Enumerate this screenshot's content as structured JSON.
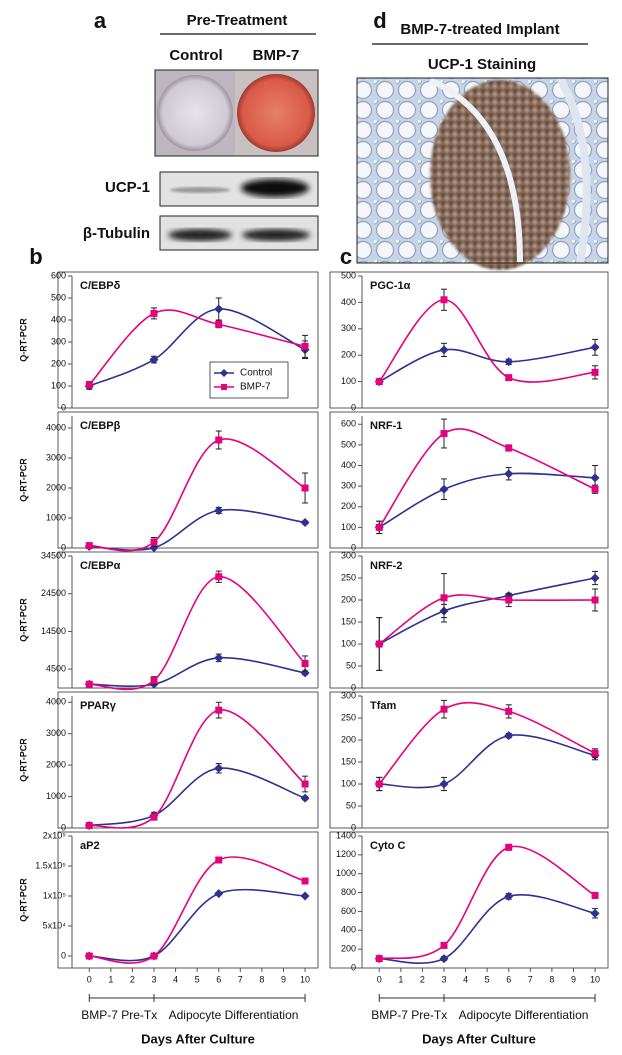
{
  "panels": {
    "a": {
      "label": "a",
      "header": "Pre-Treatment",
      "columns": [
        "Control",
        "BMP-7"
      ],
      "blots": [
        "UCP-1",
        "β-Tubulin"
      ]
    },
    "d": {
      "label": "d",
      "title": "BMP-7-treated Implant",
      "subtitle": "UCP-1  Staining"
    },
    "b": {
      "label": "b"
    },
    "c": {
      "label": "c"
    }
  },
  "chart_data": [
    {
      "type": "line",
      "title": "C/EBPδ",
      "ylabel": "Q-RT-PCR",
      "x": [
        0,
        3,
        6,
        10
      ],
      "xlim": [
        -0.8,
        10.6
      ],
      "ylim": [
        0,
        600
      ],
      "yticks": [
        0,
        100,
        200,
        300,
        400,
        500,
        600
      ],
      "legend": "lower-right",
      "series": [
        {
          "name": "Control",
          "color": "#2e3192",
          "marker": "diamond",
          "values": [
            100,
            220,
            450,
            265
          ],
          "errors": [
            15,
            15,
            50,
            40
          ]
        },
        {
          "name": "BMP-7",
          "color": "#e6007e",
          "marker": "square",
          "values": [
            105,
            430,
            380,
            280
          ],
          "errors": [
            15,
            25,
            15,
            50
          ]
        }
      ]
    },
    {
      "type": "line",
      "title": "C/EBPβ",
      "ylabel": "Q-RT-PCR",
      "x": [
        0,
        3,
        6,
        10
      ],
      "xlim": [
        -0.8,
        10.6
      ],
      "ylim": [
        0,
        4400
      ],
      "yticks": [
        0,
        1000,
        2000,
        3000,
        4000
      ],
      "series": [
        {
          "color": "#2e3192",
          "marker": "diamond",
          "values": [
            50,
            10,
            1250,
            850
          ],
          "errors": [
            20,
            20,
            100,
            50
          ]
        },
        {
          "color": "#e6007e",
          "marker": "square",
          "values": [
            80,
            200,
            3600,
            2000
          ],
          "errors": [
            20,
            150,
            300,
            500
          ]
        }
      ]
    },
    {
      "type": "line",
      "title": "C/EBPα",
      "ylabel": "Q-RT-PCR",
      "x": [
        0,
        3,
        6,
        10
      ],
      "xlim": [
        -0.8,
        10.6
      ],
      "ylim": [
        -500,
        34500
      ],
      "yticks": [
        4500,
        14500,
        24500,
        34500
      ],
      "series": [
        {
          "color": "#2e3192",
          "marker": "diamond",
          "values": [
            500,
            500,
            7500,
            3500
          ],
          "errors": [
            200,
            200,
            1000,
            500
          ]
        },
        {
          "color": "#e6007e",
          "marker": "square",
          "values": [
            500,
            1500,
            29000,
            6000
          ],
          "errors": [
            200,
            1000,
            1500,
            2000
          ]
        }
      ]
    },
    {
      "type": "line",
      "title": "PPARγ",
      "ylabel": "Q-RT-PCR",
      "x": [
        0,
        3,
        6,
        10
      ],
      "xlim": [
        -0.8,
        10.6
      ],
      "ylim": [
        0,
        4200
      ],
      "yticks": [
        0,
        1000,
        2000,
        3000,
        4000
      ],
      "series": [
        {
          "color": "#2e3192",
          "marker": "diamond",
          "values": [
            80,
            400,
            1900,
            950
          ],
          "errors": [
            20,
            100,
            150,
            50
          ]
        },
        {
          "color": "#e6007e",
          "marker": "square",
          "values": [
            80,
            350,
            3750,
            1400
          ],
          "errors": [
            20,
            100,
            250,
            250
          ]
        }
      ]
    },
    {
      "type": "line",
      "title": "aP2",
      "ylabel": "Q-RT-PCR",
      "x": [
        0,
        3,
        6,
        10
      ],
      "xlim": [
        -0.8,
        10.6
      ],
      "ylim": [
        -20000,
        200000
      ],
      "yticks": [
        0,
        {
          "value": 50000,
          "label": "5x10⁴"
        },
        {
          "value": 100000,
          "label": "1x10⁵"
        },
        {
          "value": 150000,
          "label": "1.5x10⁵"
        },
        {
          "value": 200000,
          "label": "2x10⁵"
        }
      ],
      "xticks": [
        0,
        1,
        2,
        3,
        4,
        5,
        6,
        7,
        8,
        9,
        10
      ],
      "xlabel": "Days After Culture",
      "phases": [
        {
          "label": "BMP-7 Pre-Tx",
          "start": 0,
          "end": 3
        },
        {
          "label": "Adipocyte Differentiation",
          "start": 3,
          "end": 10
        }
      ],
      "series": [
        {
          "color": "#2e3192",
          "marker": "diamond",
          "values": [
            0,
            0,
            104000,
            100000
          ],
          "errors": [
            5000,
            5000,
            2000,
            2000
          ]
        },
        {
          "color": "#e6007e",
          "marker": "square",
          "values": [
            0,
            0,
            160000,
            125000
          ],
          "errors": [
            5000,
            5000,
            2000,
            2000
          ]
        }
      ]
    },
    {
      "type": "line",
      "title": "PGC-1α",
      "x": [
        0,
        3,
        6,
        10
      ],
      "xlim": [
        -0.8,
        10.6
      ],
      "ylim": [
        0,
        500
      ],
      "yticks": [
        0,
        100,
        200,
        300,
        400,
        500
      ],
      "series": [
        {
          "color": "#2e3192",
          "marker": "diamond",
          "values": [
            100,
            220,
            175,
            230
          ],
          "errors": [
            5,
            25,
            10,
            30
          ]
        },
        {
          "color": "#e6007e",
          "marker": "square",
          "values": [
            100,
            410,
            115,
            135
          ],
          "errors": [
            5,
            40,
            10,
            25
          ]
        }
      ]
    },
    {
      "type": "line",
      "title": "NRF-1",
      "x": [
        0,
        3,
        6,
        10
      ],
      "xlim": [
        -0.8,
        10.6
      ],
      "ylim": [
        0,
        640
      ],
      "yticks": [
        0,
        100,
        200,
        300,
        400,
        500,
        600
      ],
      "series": [
        {
          "color": "#2e3192",
          "marker": "diamond",
          "values": [
            100,
            285,
            360,
            340
          ],
          "errors": [
            30,
            50,
            30,
            60
          ]
        },
        {
          "color": "#e6007e",
          "marker": "square",
          "values": [
            100,
            555,
            485,
            285
          ],
          "errors": [
            30,
            70,
            15,
            20
          ]
        }
      ]
    },
    {
      "type": "line",
      "title": "NRF-2",
      "x": [
        0,
        3,
        6,
        10
      ],
      "xlim": [
        -0.8,
        10.6
      ],
      "ylim": [
        0,
        300
      ],
      "yticks": [
        0,
        50,
        100,
        150,
        200,
        250,
        300
      ],
      "series": [
        {
          "color": "#2e3192",
          "marker": "diamond",
          "values": [
            100,
            175,
            210,
            250
          ],
          "errors": [
            60,
            15,
            5,
            15
          ]
        },
        {
          "color": "#e6007e",
          "marker": "square",
          "values": [
            100,
            205,
            200,
            200
          ],
          "errors": [
            60,
            55,
            15,
            25
          ]
        }
      ]
    },
    {
      "type": "line",
      "title": "Tfam",
      "x": [
        0,
        3,
        6,
        10
      ],
      "xlim": [
        -0.8,
        10.6
      ],
      "ylim": [
        0,
        300
      ],
      "yticks": [
        0,
        50,
        100,
        150,
        200,
        250,
        300
      ],
      "series": [
        {
          "color": "#2e3192",
          "marker": "diamond",
          "values": [
            100,
            100,
            210,
            165
          ],
          "errors": [
            15,
            15,
            5,
            10
          ]
        },
        {
          "color": "#e6007e",
          "marker": "square",
          "values": [
            100,
            270,
            265,
            170
          ],
          "errors": [
            15,
            20,
            15,
            10
          ]
        }
      ]
    },
    {
      "type": "line",
      "title": "Cyto C",
      "x": [
        0,
        3,
        6,
        10
      ],
      "xlim": [
        -0.8,
        10.6
      ],
      "ylim": [
        0,
        1400
      ],
      "yticks": [
        0,
        200,
        400,
        600,
        800,
        1000,
        1200,
        1400
      ],
      "xticks": [
        0,
        1,
        2,
        3,
        4,
        5,
        6,
        7,
        8,
        9,
        10
      ],
      "xlabel": "Days After Culture",
      "phases": [
        {
          "label": "BMP-7 Pre-Tx",
          "start": 0,
          "end": 3
        },
        {
          "label": "Adipocyte Differentiation",
          "start": 3,
          "end": 10
        }
      ],
      "series": [
        {
          "color": "#2e3192",
          "marker": "diamond",
          "values": [
            100,
            100,
            760,
            580
          ],
          "errors": [
            10,
            20,
            30,
            50
          ]
        },
        {
          "color": "#e6007e",
          "marker": "square",
          "values": [
            100,
            240,
            1280,
            770
          ],
          "errors": [
            10,
            30,
            30,
            30
          ]
        }
      ]
    }
  ]
}
